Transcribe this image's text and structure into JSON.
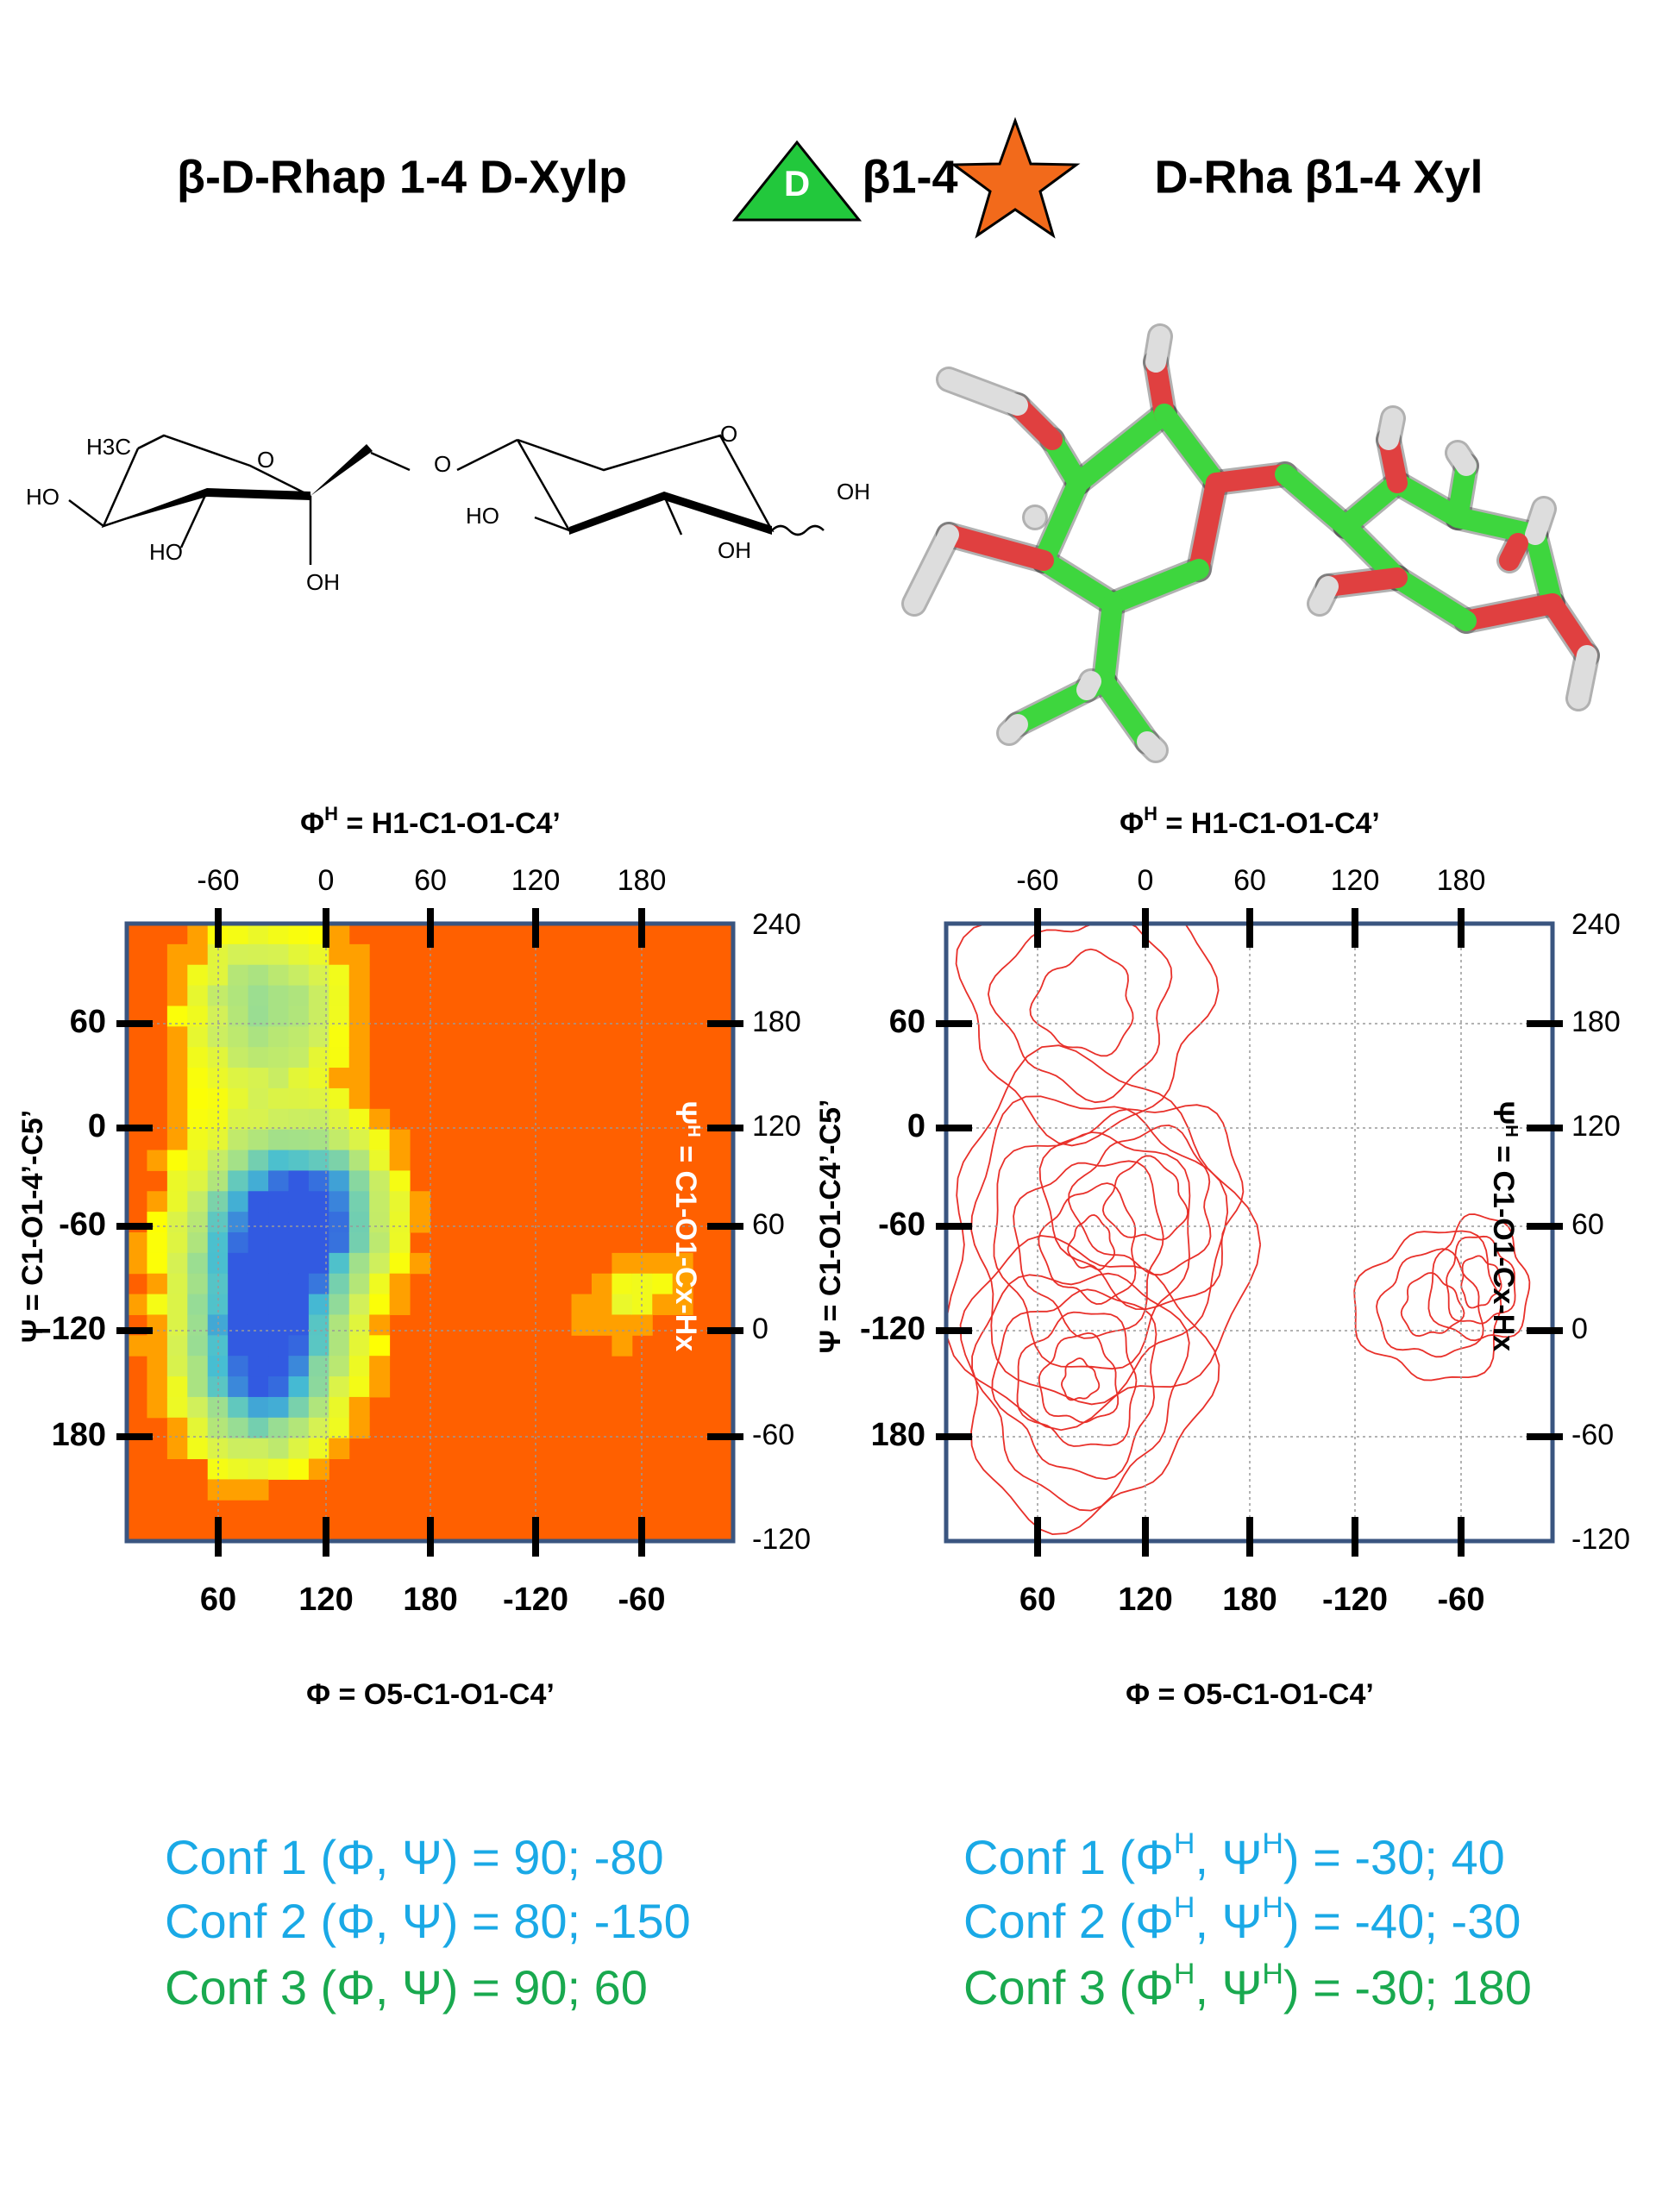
{
  "header": {
    "left_title": "β-D-Rhap 1-4 D-Xylp",
    "icon_letter": "D",
    "linkage": "β1-4",
    "right_title": "D-Rha β1-4 Xyl"
  },
  "structure": {
    "labels": [
      "H3C",
      "O",
      "O",
      "O",
      "HO",
      "HO",
      "OH",
      "HO",
      "OH",
      "OH"
    ]
  },
  "plots": [
    {
      "top_axis_label": {
        "symbol": "Φ",
        "sup": "H",
        "rest": " = H1-C1-O1-C4’"
      },
      "top_ticks": [
        -60,
        0,
        60,
        120,
        180
      ],
      "bottom_ticks": [
        60,
        120,
        180,
        -120,
        -60
      ],
      "left_ticks": [
        60,
        0,
        -60,
        -120,
        180
      ],
      "right_ticks": [
        240,
        180,
        120,
        60,
        0,
        -60,
        -120
      ],
      "left_axis_label": "Ψ = C1-O1-4’-C5’",
      "right_axis_label": {
        "symbol": "Ψ",
        "sup": "H",
        "rest": " = C1-O1-Cx-Hx"
      },
      "bottom_axis_label": "Φ = O5-C1-O1-C4’"
    },
    {
      "top_axis_label": {
        "symbol": "Φ",
        "sup": "H",
        "rest": " = H1-C1-O1-C4’"
      },
      "top_ticks": [
        -60,
        0,
        60,
        120,
        180
      ],
      "bottom_ticks": [
        60,
        120,
        180,
        -120,
        -60
      ],
      "left_ticks": [
        60,
        0,
        -60,
        -120,
        180
      ],
      "right_ticks": [
        240,
        180,
        120,
        60,
        0,
        -60,
        -120
      ],
      "left_axis_label": "Ψ = C1-O1-C4’-C5’",
      "right_axis_label": {
        "symbol": "Ψ",
        "sup": "H",
        "rest": " = C1-O1-Cx-Hx"
      },
      "bottom_axis_label": "Φ = O5-C1-O1-C4’"
    }
  ],
  "conformations": {
    "left": [
      {
        "color": "#1aa9e6",
        "parts": [
          "Conf 1 (Φ, Ψ) = 90; -80"
        ]
      },
      {
        "color": "#1aa9e6",
        "parts": [
          "Conf 2 (Φ, Ψ) = 80; -150"
        ]
      },
      {
        "color": "#19a94f",
        "parts": [
          "Conf 3 (Φ, Ψ) = 90;  60"
        ]
      }
    ],
    "right": [
      {
        "color": "#1aa9e6",
        "parts": [
          "Conf 1 (Φ",
          "H",
          ", Ψ",
          "H",
          ") =  -30; 40"
        ]
      },
      {
        "color": "#1aa9e6",
        "parts": [
          "Conf 2 (Φ",
          "H",
          ", Ψ",
          "H",
          ") =  -40; -30"
        ]
      },
      {
        "color": "#19a94f",
        "parts": [
          "Conf 3 (Φ",
          "H",
          ", Ψ",
          "H",
          ") =  -30; 180"
        ]
      }
    ]
  }
}
